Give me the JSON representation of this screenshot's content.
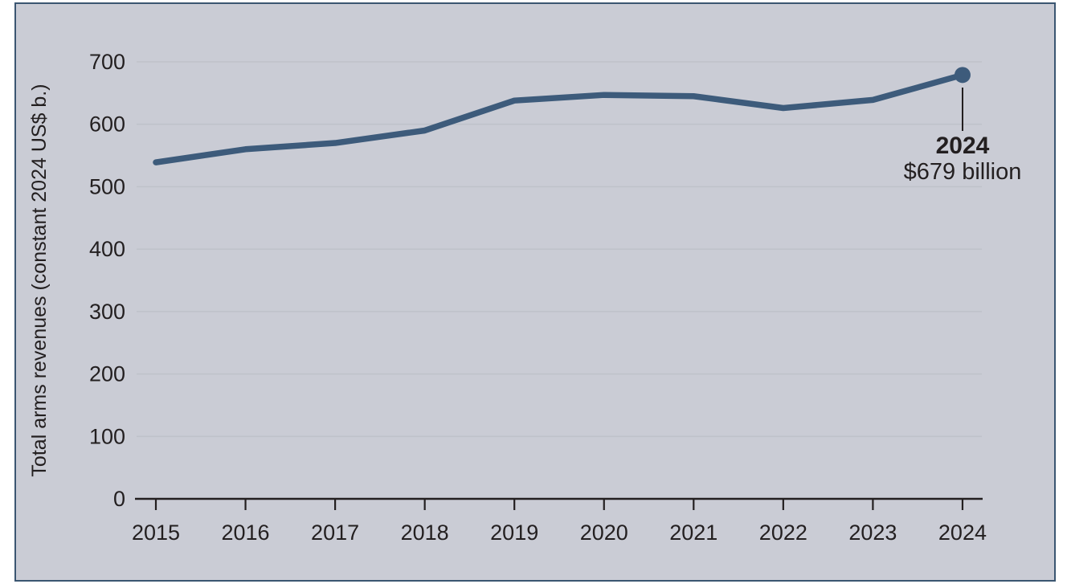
{
  "figure": {
    "page_background": "#ffffff",
    "panel_background": "#caccd5",
    "panel_border_color": "#3b5671",
    "gridline_color": "#bfc2ca",
    "axis_color": "#231f20",
    "text_color": "#231f20"
  },
  "chart_data": {
    "type": "line",
    "title": "",
    "xlabel": "",
    "ylabel": "Total arms revenues (constant 2024 US$ b.)",
    "x": [
      "2015",
      "2016",
      "2017",
      "2018",
      "2019",
      "2020",
      "2021",
      "2022",
      "2023",
      "2024"
    ],
    "series": [
      {
        "name": "Total arms revenues",
        "values": [
          539,
          560,
          570,
          590,
          638,
          647,
          645,
          626,
          639,
          679
        ],
        "color": "#3d5b7b"
      }
    ],
    "ylim": [
      0,
      700
    ],
    "yticks": [
      0,
      100,
      200,
      300,
      400,
      500,
      600,
      700
    ],
    "grid": true,
    "legend": "none",
    "annotation": {
      "year": "2024",
      "value_label": "$679 billion"
    }
  }
}
